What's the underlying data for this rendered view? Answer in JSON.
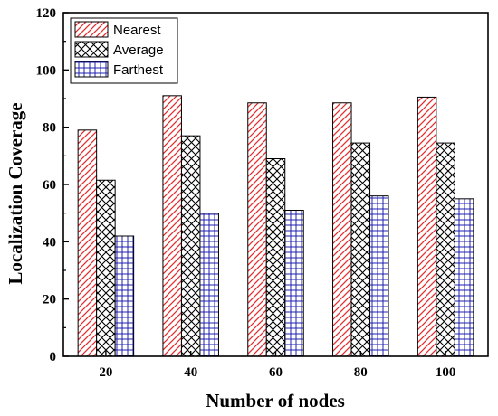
{
  "chart_data": {
    "type": "bar",
    "title": "",
    "xlabel": "Number of nodes",
    "ylabel": "Localization Coverage",
    "categories": [
      "20",
      "40",
      "60",
      "80",
      "100"
    ],
    "ylim": [
      0,
      120
    ],
    "yticks": [
      0,
      20,
      40,
      60,
      80,
      100,
      120
    ],
    "grid": false,
    "legend_position": "top-left",
    "series": [
      {
        "name": "Nearest",
        "values": [
          79,
          91,
          88.5,
          88.5,
          90.5
        ],
        "color": "#e03030",
        "pattern": "diagonal-hatch"
      },
      {
        "name": "Average",
        "values": [
          61.5,
          77,
          69,
          74.5,
          74.5
        ],
        "color": "#000000",
        "pattern": "crosshatch"
      },
      {
        "name": "Farthest",
        "values": [
          42,
          50,
          51,
          56,
          55
        ],
        "color": "#2020b0",
        "pattern": "grid"
      }
    ]
  }
}
